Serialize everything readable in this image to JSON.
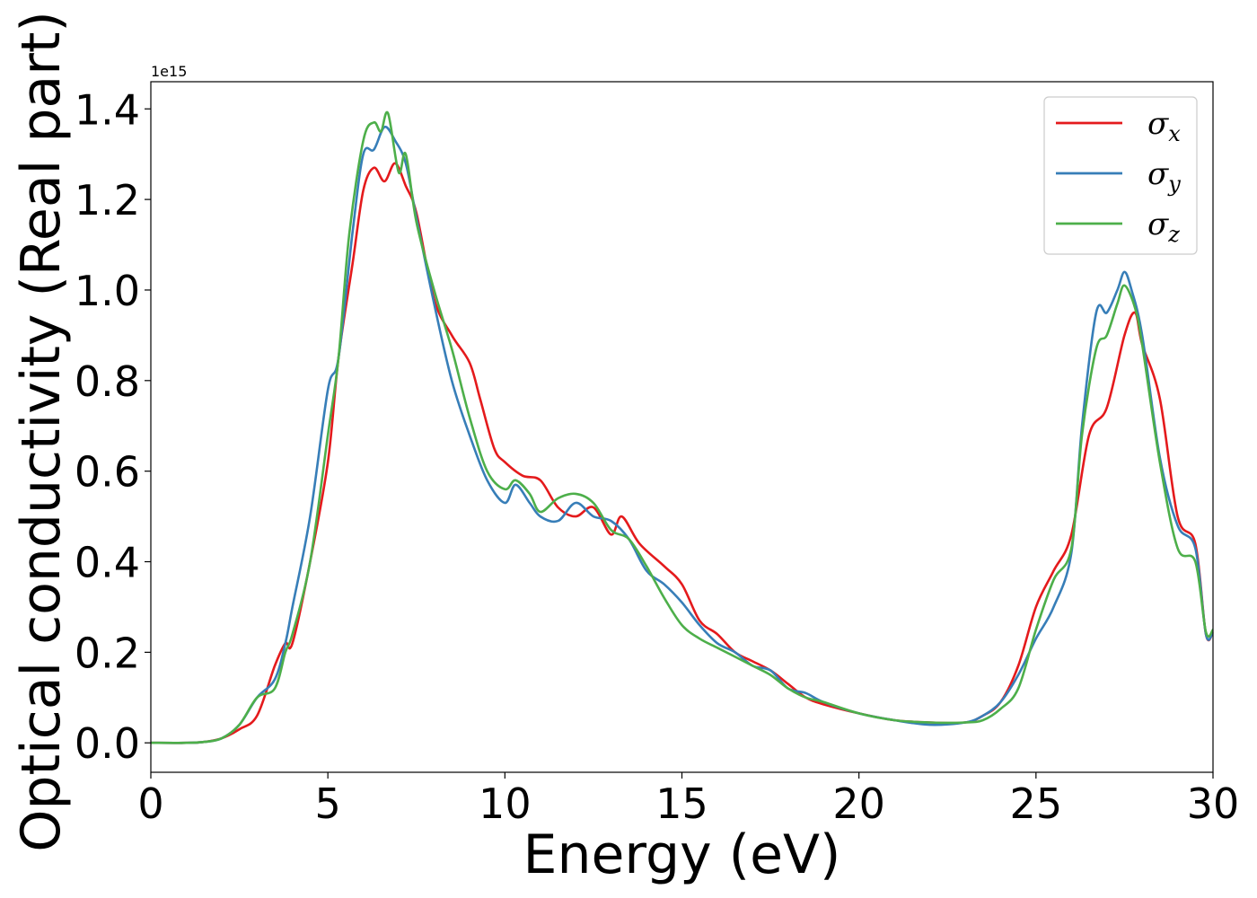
{
  "chart_data": {
    "type": "line",
    "title": "",
    "xlabel": "Energy (eV)",
    "ylabel": "Optical conductivity (Real part)",
    "y_offset_label": "1e15",
    "xlim": [
      0,
      30
    ],
    "ylim": [
      -0.065,
      1.46
    ],
    "xticks": [
      0,
      5,
      10,
      15,
      20,
      25,
      30
    ],
    "xtick_labels": [
      "0",
      "5",
      "10",
      "15",
      "20",
      "25",
      "30"
    ],
    "yticks": [
      0.0,
      0.2,
      0.4,
      0.6,
      0.8,
      1.0,
      1.2,
      1.4
    ],
    "ytick_labels": [
      "0.0",
      "0.2",
      "0.4",
      "0.6",
      "0.8",
      "1.0",
      "1.2",
      "1.4"
    ],
    "grid": false,
    "legend_position": "top-right",
    "series": [
      {
        "name": "σx",
        "legend_base": "σ",
        "legend_sub": "x",
        "color": "#e41a1c",
        "points": [
          [
            0,
            0.0
          ],
          [
            1,
            0.0
          ],
          [
            1.5,
            0.002
          ],
          [
            2,
            0.01
          ],
          [
            2.5,
            0.03
          ],
          [
            3,
            0.06
          ],
          [
            3.5,
            0.17
          ],
          [
            3.8,
            0.22
          ],
          [
            4,
            0.22
          ],
          [
            4.5,
            0.4
          ],
          [
            5,
            0.62
          ],
          [
            5.3,
            0.85
          ],
          [
            5.7,
            1.06
          ],
          [
            6,
            1.22
          ],
          [
            6.3,
            1.27
          ],
          [
            6.6,
            1.24
          ],
          [
            6.9,
            1.28
          ],
          [
            7.2,
            1.23
          ],
          [
            7.5,
            1.17
          ],
          [
            8,
            0.98
          ],
          [
            8.5,
            0.9
          ],
          [
            9,
            0.84
          ],
          [
            9.3,
            0.76
          ],
          [
            9.7,
            0.65
          ],
          [
            10,
            0.62
          ],
          [
            10.5,
            0.59
          ],
          [
            11,
            0.58
          ],
          [
            11.5,
            0.52
          ],
          [
            12,
            0.5
          ],
          [
            12.5,
            0.52
          ],
          [
            13,
            0.46
          ],
          [
            13.3,
            0.5
          ],
          [
            13.8,
            0.44
          ],
          [
            14.5,
            0.39
          ],
          [
            15,
            0.35
          ],
          [
            15.5,
            0.27
          ],
          [
            16,
            0.24
          ],
          [
            16.5,
            0.2
          ],
          [
            17,
            0.18
          ],
          [
            17.5,
            0.16
          ],
          [
            18,
            0.13
          ],
          [
            18.5,
            0.1
          ],
          [
            19,
            0.085
          ],
          [
            20,
            0.065
          ],
          [
            21,
            0.05
          ],
          [
            22,
            0.045
          ],
          [
            23,
            0.045
          ],
          [
            23.5,
            0.06
          ],
          [
            24,
            0.09
          ],
          [
            24.5,
            0.17
          ],
          [
            25,
            0.3
          ],
          [
            25.5,
            0.38
          ],
          [
            26,
            0.46
          ],
          [
            26.5,
            0.68
          ],
          [
            27,
            0.74
          ],
          [
            27.5,
            0.9
          ],
          [
            27.8,
            0.95
          ],
          [
            28,
            0.88
          ],
          [
            28.5,
            0.76
          ],
          [
            29,
            0.5
          ],
          [
            29.5,
            0.44
          ],
          [
            29.8,
            0.24
          ],
          [
            30,
            0.245
          ]
        ]
      },
      {
        "name": "σy",
        "legend_base": "σ",
        "legend_sub": "y",
        "color": "#377eb8",
        "points": [
          [
            0,
            0.0
          ],
          [
            1,
            0.0
          ],
          [
            1.5,
            0.002
          ],
          [
            2,
            0.01
          ],
          [
            2.5,
            0.04
          ],
          [
            3,
            0.1
          ],
          [
            3.5,
            0.14
          ],
          [
            3.8,
            0.22
          ],
          [
            4,
            0.3
          ],
          [
            4.5,
            0.5
          ],
          [
            5,
            0.78
          ],
          [
            5.3,
            0.85
          ],
          [
            5.7,
            1.13
          ],
          [
            6,
            1.3
          ],
          [
            6.3,
            1.31
          ],
          [
            6.6,
            1.36
          ],
          [
            6.9,
            1.33
          ],
          [
            7.2,
            1.28
          ],
          [
            7.5,
            1.16
          ],
          [
            8,
            0.97
          ],
          [
            8.5,
            0.8
          ],
          [
            9,
            0.68
          ],
          [
            9.5,
            0.58
          ],
          [
            10,
            0.53
          ],
          [
            10.3,
            0.57
          ],
          [
            10.7,
            0.53
          ],
          [
            11,
            0.5
          ],
          [
            11.5,
            0.49
          ],
          [
            12,
            0.53
          ],
          [
            12.5,
            0.5
          ],
          [
            13,
            0.49
          ],
          [
            13.5,
            0.45
          ],
          [
            14,
            0.38
          ],
          [
            14.5,
            0.35
          ],
          [
            15,
            0.31
          ],
          [
            15.5,
            0.26
          ],
          [
            16,
            0.22
          ],
          [
            16.5,
            0.2
          ],
          [
            17,
            0.17
          ],
          [
            17.5,
            0.16
          ],
          [
            18,
            0.12
          ],
          [
            18.5,
            0.11
          ],
          [
            19,
            0.09
          ],
          [
            20,
            0.065
          ],
          [
            21,
            0.05
          ],
          [
            22,
            0.04
          ],
          [
            23,
            0.045
          ],
          [
            23.5,
            0.06
          ],
          [
            24,
            0.09
          ],
          [
            24.5,
            0.15
          ],
          [
            25,
            0.23
          ],
          [
            25.5,
            0.3
          ],
          [
            26,
            0.42
          ],
          [
            26.3,
            0.7
          ],
          [
            26.7,
            0.95
          ],
          [
            27,
            0.95
          ],
          [
            27.3,
            1.0
          ],
          [
            27.5,
            1.04
          ],
          [
            27.7,
            1.0
          ],
          [
            28,
            0.9
          ],
          [
            28.5,
            0.63
          ],
          [
            29,
            0.48
          ],
          [
            29.5,
            0.43
          ],
          [
            29.8,
            0.24
          ],
          [
            30,
            0.245
          ]
        ]
      },
      {
        "name": "σz",
        "legend_base": "σ",
        "legend_sub": "z",
        "color": "#4daf4a",
        "points": [
          [
            0,
            0.0
          ],
          [
            1,
            0.0
          ],
          [
            1.5,
            0.002
          ],
          [
            2,
            0.01
          ],
          [
            2.5,
            0.04
          ],
          [
            3,
            0.1
          ],
          [
            3.5,
            0.12
          ],
          [
            3.8,
            0.2
          ],
          [
            4,
            0.24
          ],
          [
            4.5,
            0.4
          ],
          [
            5,
            0.68
          ],
          [
            5.3,
            0.85
          ],
          [
            5.6,
            1.12
          ],
          [
            6,
            1.33
          ],
          [
            6.3,
            1.37
          ],
          [
            6.5,
            1.35
          ],
          [
            6.7,
            1.39
          ],
          [
            7,
            1.26
          ],
          [
            7.2,
            1.3
          ],
          [
            7.5,
            1.15
          ],
          [
            8,
            1.0
          ],
          [
            8.5,
            0.87
          ],
          [
            9,
            0.72
          ],
          [
            9.5,
            0.6
          ],
          [
            10,
            0.56
          ],
          [
            10.3,
            0.58
          ],
          [
            10.7,
            0.55
          ],
          [
            11,
            0.51
          ],
          [
            11.5,
            0.54
          ],
          [
            12,
            0.55
          ],
          [
            12.5,
            0.53
          ],
          [
            13,
            0.47
          ],
          [
            13.5,
            0.45
          ],
          [
            14,
            0.39
          ],
          [
            14.5,
            0.32
          ],
          [
            15,
            0.26
          ],
          [
            15.5,
            0.23
          ],
          [
            16,
            0.21
          ],
          [
            16.5,
            0.19
          ],
          [
            17,
            0.17
          ],
          [
            17.5,
            0.15
          ],
          [
            18,
            0.12
          ],
          [
            18.5,
            0.1
          ],
          [
            19,
            0.09
          ],
          [
            20,
            0.065
          ],
          [
            21,
            0.05
          ],
          [
            22,
            0.045
          ],
          [
            23,
            0.045
          ],
          [
            23.5,
            0.05
          ],
          [
            24,
            0.075
          ],
          [
            24.5,
            0.12
          ],
          [
            25,
            0.25
          ],
          [
            25.5,
            0.36
          ],
          [
            26,
            0.43
          ],
          [
            26.3,
            0.68
          ],
          [
            26.7,
            0.87
          ],
          [
            27,
            0.9
          ],
          [
            27.3,
            0.97
          ],
          [
            27.5,
            1.01
          ],
          [
            27.8,
            0.96
          ],
          [
            28,
            0.88
          ],
          [
            28.5,
            0.62
          ],
          [
            29,
            0.43
          ],
          [
            29.5,
            0.4
          ],
          [
            29.8,
            0.245
          ],
          [
            30,
            0.25
          ]
        ]
      }
    ]
  }
}
